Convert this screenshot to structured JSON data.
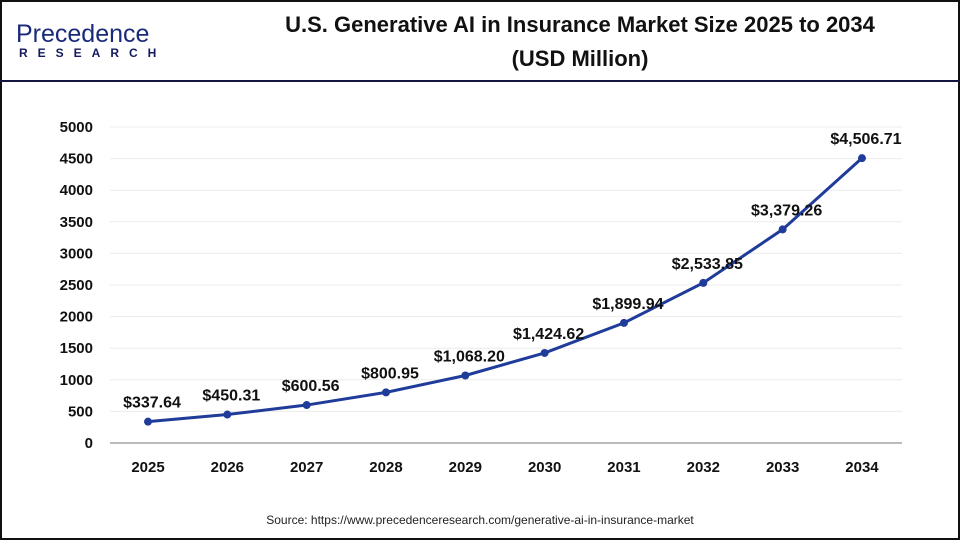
{
  "logo": {
    "line1": "Precedence",
    "line2": "RESEARCH"
  },
  "chart_data": {
    "type": "line",
    "title": "U.S. Generative AI in Insurance Market Size 2025 to 2034",
    "subtitle": "(USD Million)",
    "categories": [
      "2025",
      "2026",
      "2027",
      "2028",
      "2029",
      "2030",
      "2031",
      "2032",
      "2033",
      "2034"
    ],
    "values": [
      337.64,
      450.31,
      600.56,
      800.95,
      1068.2,
      1424.62,
      1899.94,
      2533.85,
      3379.26,
      4506.71
    ],
    "data_labels": [
      "$337.64",
      "$450.31",
      "$600.56",
      "$800.95",
      "$1,068.20",
      "$1,424.62",
      "$1,899.94",
      "$2,533.85",
      "$3,379.26",
      "$4,506.71"
    ],
    "yticks": [
      "0",
      "500",
      "1000",
      "1500",
      "2000",
      "2500",
      "3000",
      "3500",
      "4000",
      "4500",
      "5000"
    ],
    "ylim": [
      0,
      5000
    ],
    "grid": true,
    "color": "#1f3c9a"
  },
  "source": "Source: https://www.precedenceresearch.com/generative-ai-in-insurance-market"
}
